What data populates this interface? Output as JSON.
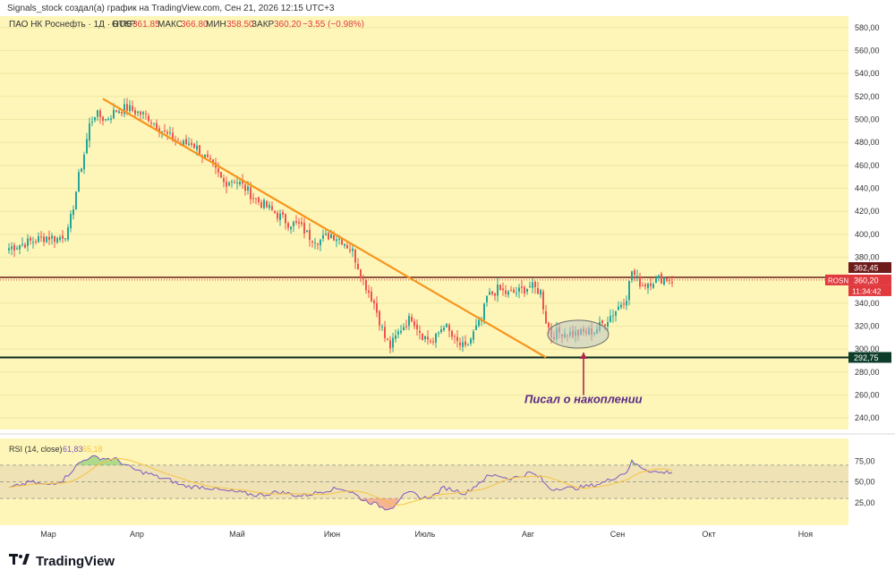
{
  "header": {
    "credit": "Signals_stock создал(а) график на TradingView.com, Сен 21, 2026 12:15 UTC+3"
  },
  "legend": {
    "symbol": "ПАО НК Роснефть · 1Д · RUS",
    "open_label": "ОТКР",
    "open": "361,85",
    "high_label": "МАКС",
    "high": "366,80",
    "low_label": "МИН",
    "low": "358,50",
    "close_label": "ЗАКР",
    "close": "360,20",
    "change": "−3,55 (−0,98%)"
  },
  "price_axis": {
    "ticks": [
      "580,00",
      "560,00",
      "540,00",
      "520,00",
      "500,00",
      "480,00",
      "460,00",
      "440,00",
      "420,00",
      "400,00",
      "380,00",
      "340,00",
      "320,00",
      "300,00",
      "280,00",
      "260,00",
      "240,00"
    ],
    "tick_values": [
      580,
      560,
      540,
      520,
      500,
      480,
      460,
      440,
      420,
      400,
      380,
      340,
      320,
      300,
      280,
      260,
      240
    ]
  },
  "badges": {
    "resistance": {
      "text": "362,45",
      "value": 362.45,
      "color": "#6d1b1b"
    },
    "ticker": {
      "text": "ROSN",
      "color": "#e0393e"
    },
    "last_price": {
      "text": "360,20",
      "value": 360.2,
      "color": "#e0393e"
    },
    "countdown": {
      "text": "11:34:42",
      "color": "#e0393e"
    },
    "support": {
      "text": "292,75",
      "value": 292.75,
      "color": "#0d3d2a"
    }
  },
  "annotation": {
    "text": "Писал о накоплении",
    "color": "#5b2a86"
  },
  "rsi": {
    "label": "RSI (14, close)",
    "value1": "61,83",
    "value2": "65,18",
    "ticks": [
      "75,00",
      "50,00",
      "25,00"
    ],
    "tick_values": [
      75,
      50,
      25
    ]
  },
  "time_axis": {
    "labels": [
      "Мар",
      "Апр",
      "Май",
      "Июн",
      "Июль",
      "Авг",
      "Сен",
      "Окт",
      "Ноя"
    ]
  },
  "brand": {
    "name": "TradingView"
  },
  "colors": {
    "background": "#fdf6b8",
    "up": "#26a69a",
    "down": "#ef5350",
    "trendline": "#f7941d",
    "rsi_line": "#7e57c2",
    "rsi_ma": "#f6c243"
  },
  "chart_data": {
    "type": "candlestick",
    "title": "ПАО НК Роснефть",
    "ylim": [
      230,
      590
    ],
    "price_anchors": [
      [
        0,
        388
      ],
      [
        10,
        395
      ],
      [
        14,
        398
      ],
      [
        18,
        396
      ],
      [
        22,
        402
      ],
      [
        24,
        425
      ],
      [
        26,
        450
      ],
      [
        28,
        470
      ],
      [
        30,
        495
      ],
      [
        32,
        505
      ],
      [
        36,
        500
      ],
      [
        40,
        508
      ],
      [
        44,
        510
      ],
      [
        48,
        506
      ],
      [
        52,
        502
      ],
      [
        58,
        488
      ],
      [
        64,
        478
      ],
      [
        68,
        480
      ],
      [
        72,
        470
      ],
      [
        76,
        458
      ],
      [
        80,
        445
      ],
      [
        84,
        448
      ],
      [
        88,
        440
      ],
      [
        92,
        430
      ],
      [
        96,
        424
      ],
      [
        100,
        417
      ],
      [
        104,
        410
      ],
      [
        108,
        408
      ],
      [
        112,
        398
      ],
      [
        116,
        395
      ],
      [
        120,
        400
      ],
      [
        124,
        395
      ],
      [
        128,
        385
      ],
      [
        132,
        360
      ],
      [
        136,
        340
      ],
      [
        140,
        310
      ],
      [
        142,
        302
      ],
      [
        146,
        318
      ],
      [
        150,
        328
      ],
      [
        154,
        312
      ],
      [
        158,
        306
      ],
      [
        162,
        322
      ],
      [
        166,
        307
      ],
      [
        170,
        300
      ],
      [
        174,
        318
      ],
      [
        176,
        325
      ],
      [
        178,
        345
      ],
      [
        182,
        352
      ],
      [
        186,
        348
      ],
      [
        190,
        350
      ],
      [
        194,
        355
      ],
      [
        198,
        350
      ],
      [
        200,
        325
      ],
      [
        202,
        312
      ],
      [
        206,
        315
      ],
      [
        210,
        313
      ],
      [
        214,
        314
      ],
      [
        218,
        316
      ],
      [
        222,
        324
      ],
      [
        226,
        334
      ],
      [
        230,
        346
      ],
      [
        232,
        368
      ],
      [
        234,
        360
      ],
      [
        236,
        356
      ],
      [
        240,
        360
      ],
      [
        244,
        362
      ],
      [
        247,
        360
      ]
    ],
    "rsi_anchors": [
      [
        0,
        42
      ],
      [
        8,
        50
      ],
      [
        14,
        46
      ],
      [
        20,
        52
      ],
      [
        26,
        72
      ],
      [
        30,
        80
      ],
      [
        36,
        78
      ],
      [
        40,
        77
      ],
      [
        44,
        69
      ],
      [
        48,
        63
      ],
      [
        52,
        60
      ],
      [
        56,
        55
      ],
      [
        60,
        52
      ],
      [
        64,
        46
      ],
      [
        68,
        44
      ],
      [
        72,
        44
      ],
      [
        76,
        42
      ],
      [
        80,
        39
      ],
      [
        84,
        38
      ],
      [
        88,
        36
      ],
      [
        92,
        34
      ],
      [
        96,
        35
      ],
      [
        100,
        38
      ],
      [
        104,
        36
      ],
      [
        108,
        33
      ],
      [
        112,
        35
      ],
      [
        116,
        38
      ],
      [
        120,
        41
      ],
      [
        124,
        42
      ],
      [
        128,
        37
      ],
      [
        132,
        28
      ],
      [
        136,
        24
      ],
      [
        140,
        18
      ],
      [
        143,
        20
      ],
      [
        146,
        32
      ],
      [
        150,
        37
      ],
      [
        154,
        30
      ],
      [
        158,
        33
      ],
      [
        162,
        43
      ],
      [
        166,
        40
      ],
      [
        170,
        36
      ],
      [
        174,
        46
      ],
      [
        178,
        56
      ],
      [
        182,
        58
      ],
      [
        186,
        54
      ],
      [
        190,
        56
      ],
      [
        194,
        61
      ],
      [
        198,
        55
      ],
      [
        200,
        46
      ],
      [
        202,
        41
      ],
      [
        206,
        43
      ],
      [
        210,
        42
      ],
      [
        214,
        44
      ],
      [
        218,
        46
      ],
      [
        222,
        50
      ],
      [
        226,
        56
      ],
      [
        230,
        62
      ],
      [
        232,
        74
      ],
      [
        234,
        70
      ],
      [
        238,
        64
      ],
      [
        242,
        61
      ],
      [
        247,
        62
      ]
    ],
    "resistance_level": 362.45,
    "support_level": 292.75,
    "trendline": [
      [
        35,
        518
      ],
      [
        200,
        292.75
      ]
    ],
    "accumulation_zone": {
      "x_from": 202,
      "x_to": 222,
      "y_from": 304,
      "y_to": 322
    }
  }
}
